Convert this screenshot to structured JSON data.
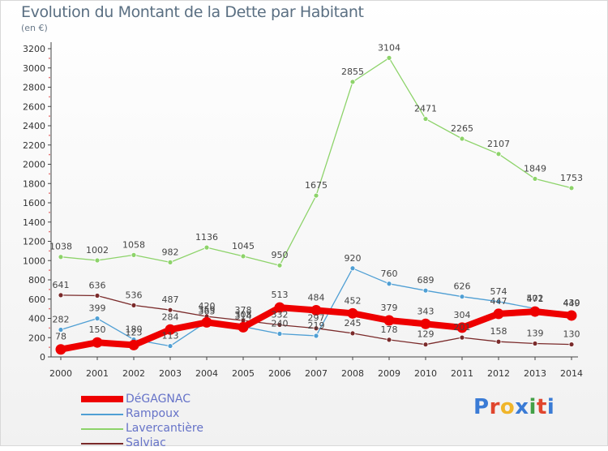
{
  "header": {
    "title": "Evolution du Montant de la Dette par Habitant",
    "subtitle": "(en €)"
  },
  "brand": {
    "letters": [
      "P",
      "r",
      "o",
      "x",
      "i",
      "t",
      "i"
    ],
    "colors": [
      "#3a7bd5",
      "#e0462e",
      "#f0b52a",
      "#3a7bd5",
      "#43a047",
      "#e0462e",
      "#3a7bd5"
    ]
  },
  "chart_data": {
    "type": "line",
    "title": "Evolution du Montant de la Dette par Habitant",
    "ylabel": "(en €)",
    "xlabel": "",
    "ylim": [
      0,
      3200
    ],
    "y_ticks": [
      "0",
      "200",
      "400",
      "600",
      "800",
      "1000",
      "1200",
      "1400",
      "1600",
      "1800",
      "2000",
      "2200",
      "2400",
      "2600",
      "2800",
      "3000",
      "3200"
    ],
    "x": [
      "2000",
      "2001",
      "2002",
      "2003",
      "2004",
      "2005",
      "2006",
      "2007",
      "2008",
      "2009",
      "2010",
      "2011",
      "2012",
      "2013",
      "2014"
    ],
    "grid": false,
    "legend_position": "bottom-left",
    "series": [
      {
        "name": "DéGAGNAC",
        "color": "#ee0000",
        "values": [
          78,
          150,
          123,
          284,
          359,
          308,
          513,
          484,
          452,
          379,
          343,
          304,
          447,
          471,
          430
        ],
        "labels": [
          "78",
          "150",
          "123",
          "284",
          "359",
          "308",
          "513",
          "484",
          "452",
          "379",
          "343",
          "304",
          "447",
          "471",
          "430"
        ]
      },
      {
        "name": "Rampoux",
        "color": "#4f9fd4",
        "values": [
          282,
          399,
          180,
          113,
          365,
          314,
          240,
          219,
          920,
          760,
          689,
          626,
          574,
          502,
          449
        ],
        "labels": [
          "282",
          "399",
          "180",
          "113",
          "365",
          "314",
          "240",
          "219",
          "920",
          "760",
          "689",
          "626",
          "574",
          "502",
          "449"
        ]
      },
      {
        "name": "Lavercantière",
        "color": "#8dd36a",
        "values": [
          1038,
          1002,
          1058,
          982,
          1136,
          1045,
          950,
          1675,
          2855,
          3104,
          2471,
          2265,
          2107,
          1849,
          1753
        ],
        "labels": [
          "1038",
          "1002",
          "1058",
          "982",
          "1136",
          "1045",
          "950",
          "1675",
          "2855",
          "3104",
          "2471",
          "2265",
          "2107",
          "1849",
          "1753"
        ]
      },
      {
        "name": "Salviac",
        "color": "#7a2a2a",
        "values": [
          641,
          636,
          536,
          487,
          420,
          378,
          332,
          297,
          245,
          178,
          129,
          201,
          158,
          139,
          130
        ],
        "labels": [
          "641",
          "636",
          "536",
          "487",
          "420",
          "378",
          "332",
          "297",
          "245",
          "178",
          "129",
          "201",
          "158",
          "139",
          "130"
        ]
      }
    ]
  }
}
